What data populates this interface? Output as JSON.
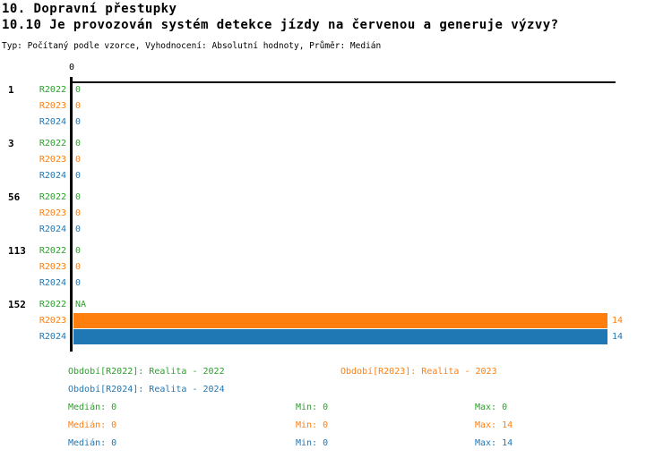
{
  "header": {
    "title": "10. Dopravní přestupky",
    "question": "10.10 Je provozován systém detekce jízdy na červenou a generuje výzvy?",
    "meta": "Typ: Počítaný podle vzorce, Vyhodnocení: Absolutní hodnoty, Průměr: Medián"
  },
  "colors": {
    "background": "#ffffff",
    "axis": "#000000",
    "r2022_green": "#2ca02c",
    "r2023_orange": "#ff7f0e",
    "r2024_blue": "#1f77b4"
  },
  "chart_data": {
    "type": "bar",
    "orientation": "horizontal",
    "title": "10.10 Je provozován systém detekce jízdy na červenou a generuje výzvy?",
    "xlabel": "",
    "ylabel": "",
    "xlim": [
      0,
      14.25
    ],
    "grid": false,
    "axis": {
      "tick_label": "0",
      "tick_value": 0
    },
    "series": [
      {
        "name": "R2022",
        "label": "Realita - 2022",
        "color": "#2ca02c"
      },
      {
        "name": "R2023",
        "label": "Realita - 2023",
        "color": "#ff7f0e"
      },
      {
        "name": "R2024",
        "label": "Realita - 2024",
        "color": "#1f77b4"
      }
    ],
    "groups": [
      {
        "label": "1",
        "rows": [
          {
            "series": "R2022",
            "value": 0,
            "value_label": "0"
          },
          {
            "series": "R2023",
            "value": 0,
            "value_label": "0"
          },
          {
            "series": "R2024",
            "value": 0,
            "value_label": "0"
          }
        ]
      },
      {
        "label": "3",
        "rows": [
          {
            "series": "R2022",
            "value": 0,
            "value_label": "0"
          },
          {
            "series": "R2023",
            "value": 0,
            "value_label": "0"
          },
          {
            "series": "R2024",
            "value": 0,
            "value_label": "0"
          }
        ]
      },
      {
        "label": "56",
        "rows": [
          {
            "series": "R2022",
            "value": 0,
            "value_label": "0"
          },
          {
            "series": "R2023",
            "value": 0,
            "value_label": "0"
          },
          {
            "series": "R2024",
            "value": 0,
            "value_label": "0"
          }
        ]
      },
      {
        "label": "113",
        "rows": [
          {
            "series": "R2022",
            "value": 0,
            "value_label": "0"
          },
          {
            "series": "R2023",
            "value": 0,
            "value_label": "0"
          },
          {
            "series": "R2024",
            "value": 0,
            "value_label": "0"
          }
        ]
      },
      {
        "label": "152",
        "rows": [
          {
            "series": "R2022",
            "value": null,
            "value_label": "NA"
          },
          {
            "series": "R2023",
            "value": 14,
            "value_label": "14"
          },
          {
            "series": "R2024",
            "value": 14,
            "value_label": "14"
          }
        ]
      }
    ],
    "legend_position": "bottom"
  },
  "legend": {
    "items": [
      {
        "label": "Období[R2022]: Realita - 2022",
        "series": "R2022"
      },
      {
        "label": "Období[R2023]: Realita - 2023",
        "series": "R2023"
      },
      {
        "label": "Období[R2024]: Realita - 2024",
        "series": "R2024"
      }
    ]
  },
  "stats": {
    "rows": [
      {
        "series": "R2022",
        "median": 0,
        "min": 0,
        "max": 0,
        "median_text": "Medián: 0",
        "min_text": "Min: 0",
        "max_text": "Max: 0"
      },
      {
        "series": "R2023",
        "median": 0,
        "min": 0,
        "max": 14,
        "median_text": "Medián: 0",
        "min_text": "Min: 0",
        "max_text": "Max: 14"
      },
      {
        "series": "R2024",
        "median": 0,
        "min": 0,
        "max": 14,
        "median_text": "Medián: 0",
        "min_text": "Min: 0",
        "max_text": "Max: 14"
      }
    ]
  }
}
